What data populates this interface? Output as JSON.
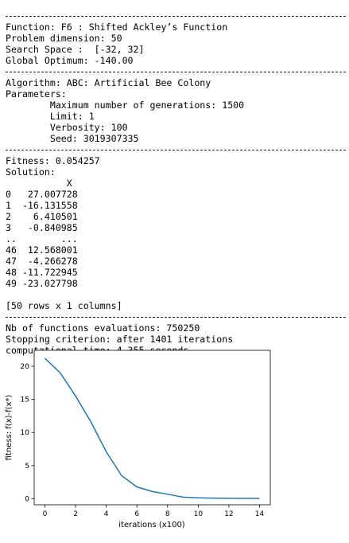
{
  "output_lines": [
    {
      "kind": "sep"
    },
    {
      "kind": "text",
      "text": "Function: F6 : Shifted Ackley’s Function"
    },
    {
      "kind": "text",
      "text": "Problem dimension: 50"
    },
    {
      "kind": "text",
      "text": "Search Space :  [-32, 32]"
    },
    {
      "kind": "text",
      "text": "Global Optimum: -140.00"
    },
    {
      "kind": "sep"
    },
    {
      "kind": "text",
      "text": "Algorithm: ABC: Artificial Bee Colony"
    },
    {
      "kind": "text",
      "text": "Parameters:"
    },
    {
      "kind": "text",
      "text": "        Maximum number of generations: 1500"
    },
    {
      "kind": "text",
      "text": "        Limit: 1"
    },
    {
      "kind": "text",
      "text": "        Verbosity: 100"
    },
    {
      "kind": "text",
      "text": "        Seed: 3019307335"
    },
    {
      "kind": "sep"
    },
    {
      "kind": "text",
      "text": "Fitness: 0.054257"
    },
    {
      "kind": "text",
      "text": "Solution:"
    },
    {
      "kind": "text",
      "text": "           X"
    },
    {
      "kind": "text",
      "text": "0   27.007728"
    },
    {
      "kind": "text",
      "text": "1  -16.131558"
    },
    {
      "kind": "text",
      "text": "2    6.410501"
    },
    {
      "kind": "text",
      "text": "3   -0.840985"
    },
    {
      "kind": "text",
      "text": "..        ..."
    },
    {
      "kind": "text",
      "text": "46  12.568001"
    },
    {
      "kind": "text",
      "text": "47  -4.266278"
    },
    {
      "kind": "text",
      "text": "48 -11.722945"
    },
    {
      "kind": "text",
      "text": "49 -23.027798"
    },
    {
      "kind": "text",
      "text": ""
    },
    {
      "kind": "text",
      "text": "[50 rows x 1 columns]"
    },
    {
      "kind": "sep"
    },
    {
      "kind": "text",
      "text": "Nb of functions evaluations: 750250"
    },
    {
      "kind": "text",
      "text": "Stopping criterion: after 1401 iterations"
    },
    {
      "kind": "text",
      "text": "computational time: 4.355 seconds"
    }
  ],
  "chart_data": {
    "type": "line",
    "xlabel": "iterations (x100)",
    "ylabel": "fitness: f(x)-f(x*)",
    "xlim": [
      -0.7,
      14.7
    ],
    "ylim": [
      -0.9,
      22.4
    ],
    "xticks": [
      0,
      2,
      4,
      6,
      8,
      10,
      12,
      14
    ],
    "yticks": [
      0,
      5,
      10,
      15,
      20
    ],
    "x": [
      0,
      1,
      2,
      3,
      4,
      5,
      6,
      7,
      8,
      9,
      10,
      11,
      12,
      13,
      14
    ],
    "series": [
      {
        "color": "#1f77b4",
        "values": [
          21.2,
          19.0,
          15.5,
          11.6,
          7.1,
          3.5,
          1.8,
          1.1,
          0.7,
          0.25,
          0.15,
          0.1,
          0.08,
          0.06,
          0.054
        ]
      }
    ],
    "grid": false
  }
}
